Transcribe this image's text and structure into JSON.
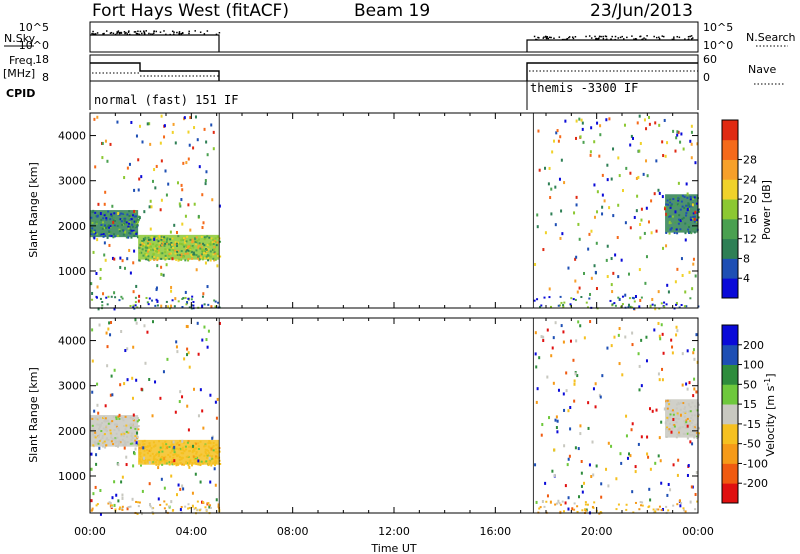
{
  "header": {
    "station": "Fort Hays West (fitACF)",
    "beam": "Beam 19",
    "date": "23/Jun/2013"
  },
  "panels": {
    "nsky_label": "N.Sky",
    "nsky_ticks": [
      "10^5",
      "10^0"
    ],
    "nsearch_label": "N.Search",
    "nsearch_ticks": [
      "10^5",
      "10^0"
    ],
    "freq_label_1": "Freq.",
    "freq_label_2": "[MHz]",
    "freq_ticks": [
      "18",
      "8"
    ],
    "nave_label": "Nave",
    "nave_ticks": [
      "60",
      "0"
    ],
    "cpid_label": "CPID",
    "cpid_modes": [
      {
        "text": "normal (fast) 151 IF",
        "start_hour": 0.0
      },
      {
        "text": "themis -3300 IF",
        "start_hour": 17.5
      }
    ]
  },
  "colors": {
    "power": [
      "#0a0ad8",
      "#1e4fb4",
      "#2e7f55",
      "#4aa050",
      "#8cc832",
      "#f0d22a",
      "#f7a02a",
      "#f56a1a",
      "#e02a12"
    ],
    "velocity": [
      "#e01010",
      "#f05a10",
      "#f59a18",
      "#f5c020",
      "#c8c8c0",
      "#6ec83c",
      "#2e8c3c",
      "#1e4fb4",
      "#0a0ad8"
    ]
  },
  "chart_data": [
    {
      "type": "heatmap",
      "name": "power",
      "xlabel": "",
      "ylabel": "Slant Range [km]",
      "xlim": [
        0,
        24
      ],
      "ylim": [
        180,
        4500
      ],
      "yticks": [
        "1000",
        "2000",
        "3000",
        "4000"
      ],
      "colorbar_label": "Power [dB]",
      "colorbar_ticks": [
        "4",
        "8",
        "12",
        "16",
        "20",
        "24",
        "28"
      ],
      "data_gaps_hours": [
        [
          5.1,
          17.5
        ]
      ],
      "bands": [
        {
          "from_hour": 0.0,
          "to_hour": 1.9,
          "range_km": [
            1750,
            2350
          ],
          "level_db": 8
        },
        {
          "from_hour": 1.9,
          "to_hour": 5.1,
          "range_km": [
            1250,
            1800
          ],
          "level_db": 16
        },
        {
          "from_hour": 22.7,
          "to_hour": 24.0,
          "range_km": [
            1850,
            2700
          ],
          "level_db": 8
        }
      ]
    },
    {
      "type": "heatmap",
      "name": "velocity",
      "xlabel": "Time UT",
      "ylabel": "Slant Range [km]",
      "xlim": [
        0,
        24
      ],
      "ylim": [
        180,
        4500
      ],
      "xticks": [
        "00:00",
        "04:00",
        "08:00",
        "12:00",
        "16:00",
        "20:00",
        "00:00"
      ],
      "yticks": [
        "1000",
        "2000",
        "3000",
        "4000"
      ],
      "colorbar_label": "Velocity [m s",
      "colorbar_label_sup": "-1",
      "colorbar_label_end": "]",
      "colorbar_ticks": [
        "200",
        "100",
        "50",
        "15",
        "-15",
        "-50",
        "-100",
        "-200"
      ],
      "data_gaps_hours": [
        [
          5.1,
          17.5
        ]
      ],
      "bands": [
        {
          "from_hour": 0.0,
          "to_hour": 1.9,
          "range_km": [
            1650,
            2350
          ],
          "level_ms": 0
        },
        {
          "from_hour": 1.9,
          "to_hour": 5.1,
          "range_km": [
            1250,
            1800
          ],
          "level_ms": -30
        },
        {
          "from_hour": 22.7,
          "to_hour": 24.0,
          "range_km": [
            1850,
            2700
          ],
          "level_ms": 0
        }
      ]
    }
  ]
}
